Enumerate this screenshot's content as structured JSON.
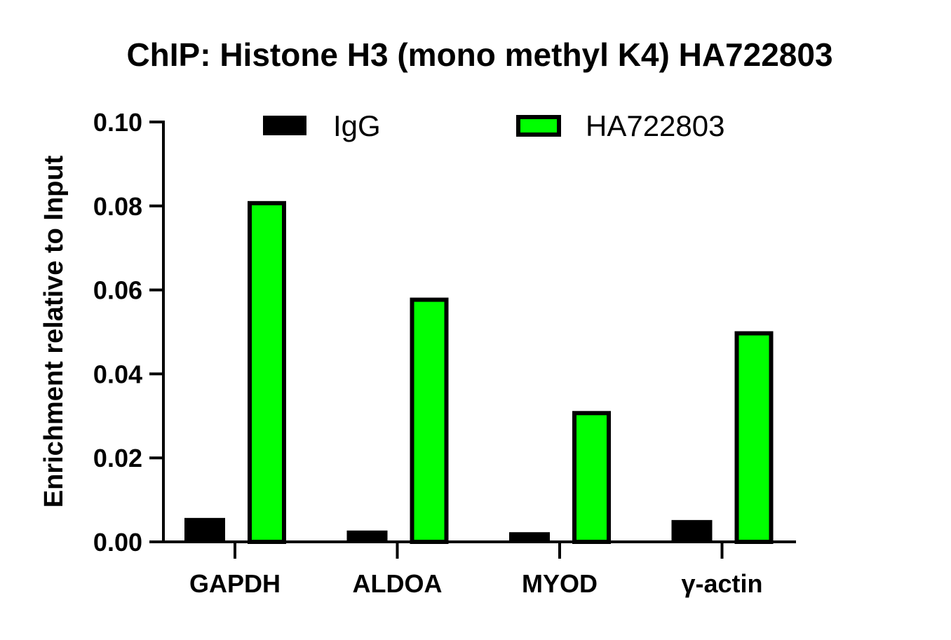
{
  "chart_data": {
    "type": "bar",
    "title": "ChIP: Histone H3 (mono methyl K4) HA722803",
    "xlabel": "",
    "ylabel": "Enrichment relative to Input",
    "ylim": [
      0,
      0.1
    ],
    "yticks": [
      "0.00",
      "0.02",
      "0.04",
      "0.06",
      "0.08",
      "0.10"
    ],
    "categories": [
      "GAPDH",
      "ALDOA",
      "MYOD",
      "γ-actin"
    ],
    "series": [
      {
        "name": "IgG",
        "color": "#000000",
        "values": [
          0.0057,
          0.0027,
          0.0023,
          0.0052
        ]
      },
      {
        "name": "HA722803",
        "color": "#00ff00",
        "values": [
          0.081,
          0.058,
          0.031,
          0.05
        ]
      }
    ],
    "legend": "top-center",
    "grid": false
  }
}
